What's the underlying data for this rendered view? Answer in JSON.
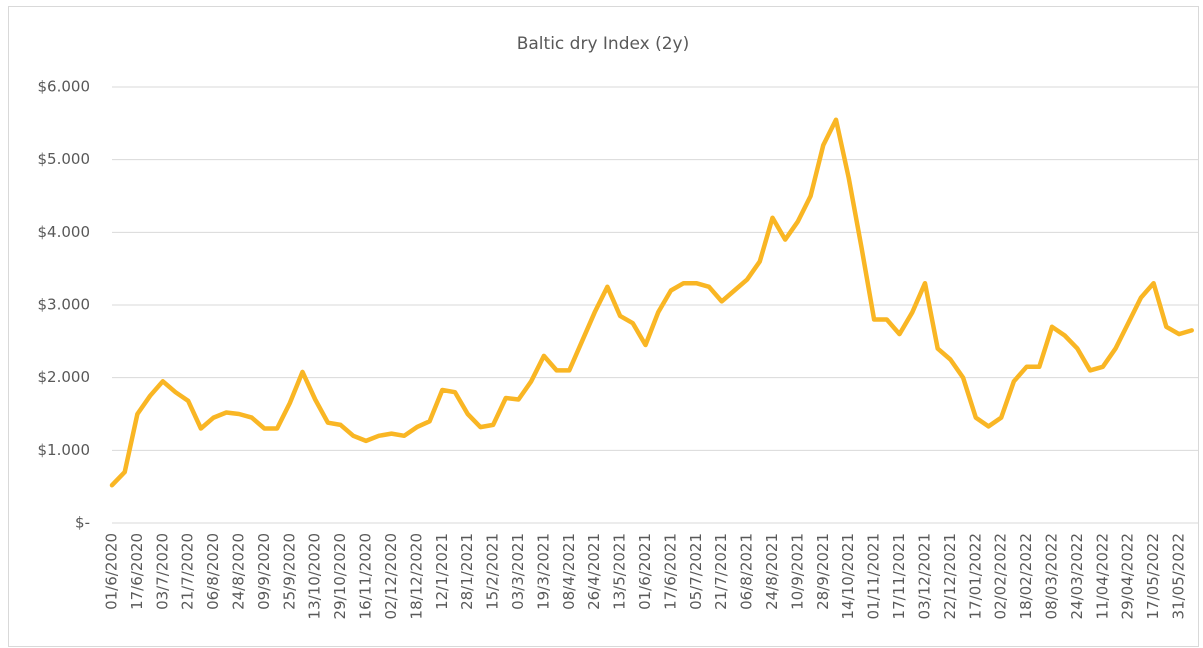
{
  "chart_data": {
    "type": "line",
    "title": "Baltic dry Index (2y)",
    "categories": [
      "01/6/2020",
      null,
      "17/6/2020",
      null,
      "03/7/2020",
      null,
      "21/7/2020",
      null,
      "06/8/2020",
      null,
      "24/8/2020",
      null,
      "09/9/2020",
      null,
      "25/9/2020",
      null,
      "13/10/2020",
      null,
      "29/10/2020",
      null,
      "16/11/2020",
      null,
      "02/12/2020",
      null,
      "18/12/2020",
      null,
      "12/1/2021",
      null,
      "28/1/2021",
      null,
      "15/2/2021",
      null,
      "03/3/2021",
      null,
      "19/3/2021",
      null,
      "08/4/2021",
      null,
      "26/4/2021",
      null,
      "13/5/2021",
      null,
      "01/6/2021",
      null,
      "17/6/2021",
      null,
      "05/7/2021",
      null,
      "21/7/2021",
      null,
      "06/8/2021",
      null,
      "24/8/2021",
      null,
      "10/9/2021",
      null,
      "28/9/2021",
      null,
      "14/10/2021",
      null,
      "01/11/2021",
      null,
      "17/11/2021",
      null,
      "03/12/2021",
      null,
      "22/12/2021",
      null,
      "17/01/2022",
      null,
      "02/02/2022",
      null,
      "18/02/2022",
      null,
      "08/03/2022",
      null,
      "24/03/2022",
      null,
      "11/04/2022",
      null,
      "29/04/2022",
      null,
      "17/05/2022",
      null,
      "31/05/2022",
      null
    ],
    "values": [
      520,
      700,
      1500,
      1750,
      1950,
      1800,
      1680,
      1300,
      1450,
      1520,
      1500,
      1450,
      1300,
      1300,
      1650,
      2080,
      1700,
      1380,
      1350,
      1200,
      1130,
      1200,
      1230,
      1200,
      1320,
      1400,
      1830,
      1800,
      1500,
      1320,
      1350,
      1720,
      1700,
      1950,
      2300,
      2100,
      2100,
      2500,
      2900,
      3250,
      2850,
      2750,
      2450,
      2900,
      3200,
      3300,
      3300,
      3250,
      3050,
      3200,
      3350,
      3600,
      4200,
      3900,
      4150,
      4500,
      5200,
      5550,
      4750,
      3800,
      2800,
      2800,
      2600,
      2900,
      3300,
      2400,
      2250,
      2000,
      1450,
      1330,
      1450,
      1950,
      2150,
      2150,
      2700,
      2580,
      2400,
      2100,
      2150,
      2400,
      2750,
      3100,
      3300,
      2700,
      2600,
      2650
    ],
    "color": "#f9b624",
    "ylim": [
      0,
      6000
    ],
    "yticks": [
      {
        "value": 0,
        "label": "$-"
      },
      {
        "value": 1000,
        "label": "$1.000"
      },
      {
        "value": 2000,
        "label": "$2.000"
      },
      {
        "value": 3000,
        "label": "$3.000"
      },
      {
        "value": 4000,
        "label": "$4.000"
      },
      {
        "value": 5000,
        "label": "$5.000"
      },
      {
        "value": 6000,
        "label": "$6.000"
      }
    ],
    "grid": true
  }
}
